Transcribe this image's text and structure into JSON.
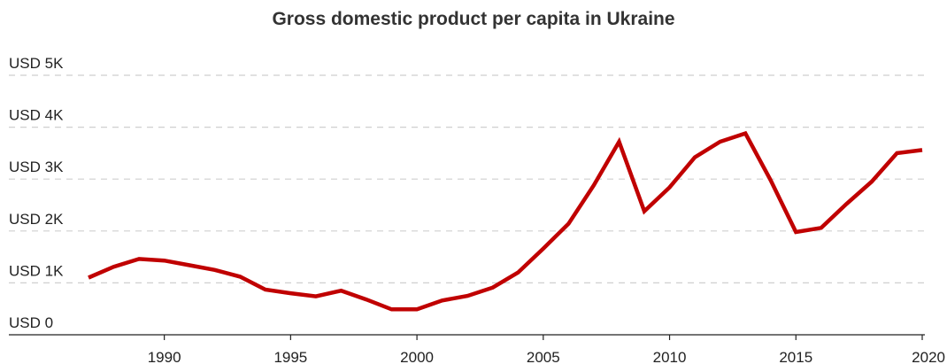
{
  "chart_data": {
    "type": "line",
    "title": "Gross domestic product per capita in Ukraine",
    "xlabel": "",
    "ylabel": "",
    "xlim": [
      1987,
      2020
    ],
    "ylim": [
      0,
      5000
    ],
    "grid": true,
    "color": "#c00000",
    "y_ticks": [
      {
        "value": 0,
        "label": "USD 0"
      },
      {
        "value": 1000,
        "label": "USD 1K"
      },
      {
        "value": 2000,
        "label": "USD 2K"
      },
      {
        "value": 3000,
        "label": "USD 3K"
      },
      {
        "value": 4000,
        "label": "USD 4K"
      },
      {
        "value": 5000,
        "label": "USD 5K"
      }
    ],
    "x_ticks": [
      {
        "value": 1990,
        "label": "1990"
      },
      {
        "value": 1995,
        "label": "1995"
      },
      {
        "value": 2000,
        "label": "2000"
      },
      {
        "value": 2005,
        "label": "2005"
      },
      {
        "value": 2010,
        "label": "2010"
      },
      {
        "value": 2015,
        "label": "2015"
      },
      {
        "value": 2020,
        "label": "2020"
      }
    ],
    "series": [
      {
        "x": [
          1987,
          1988,
          1989,
          1990,
          1991,
          1992,
          1993,
          1994,
          1995,
          1996,
          1997,
          1998,
          1999,
          2000,
          2001,
          2002,
          2003,
          2004,
          2005,
          2006,
          2007,
          2008,
          2009,
          2010,
          2011,
          2012,
          2013,
          2014,
          2015,
          2016,
          2017,
          2018,
          2019,
          2020
        ],
        "values": [
          1100,
          1310,
          1460,
          1430,
          1340,
          1250,
          1120,
          870,
          800,
          740,
          850,
          680,
          490,
          490,
          660,
          750,
          910,
          1200,
          1660,
          2140,
          2880,
          3720,
          2380,
          2840,
          3420,
          3720,
          3880,
          2980,
          1980,
          2060,
          2520,
          2950,
          3500,
          3560
        ]
      }
    ]
  }
}
